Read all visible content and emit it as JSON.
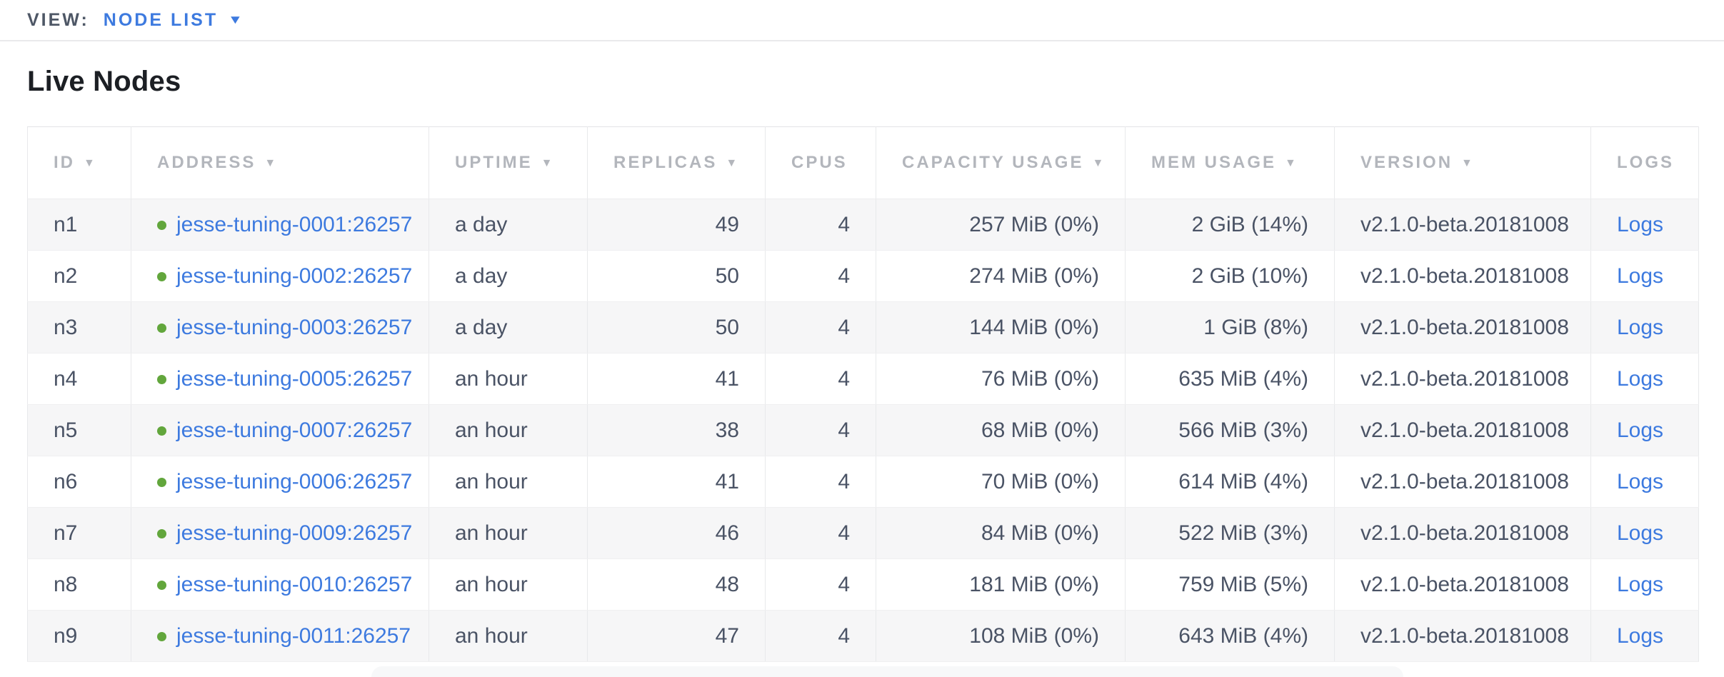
{
  "view_bar": {
    "label": "VIEW:",
    "selected": "NODE LIST",
    "caret": "▼"
  },
  "page": {
    "title": "Live Nodes"
  },
  "colors": {
    "link_blue": "#3d7adf",
    "status_green": "#62a63c",
    "header_gray": "#b3b6bc",
    "row_alt_gray": "#f6f6f7",
    "body_text": "#4a5365"
  },
  "table": {
    "sort_icon": "▼",
    "columns": [
      {
        "key": "id",
        "label": "ID",
        "sortable": true,
        "align": "left"
      },
      {
        "key": "address",
        "label": "ADDRESS",
        "sortable": true,
        "align": "left"
      },
      {
        "key": "uptime",
        "label": "UPTIME",
        "sortable": true,
        "align": "left"
      },
      {
        "key": "replicas",
        "label": "REPLICAS",
        "sortable": true,
        "align": "right"
      },
      {
        "key": "cpus",
        "label": "CPUS",
        "sortable": false,
        "align": "right"
      },
      {
        "key": "capacity",
        "label": "CAPACITY USAGE",
        "sortable": true,
        "align": "right"
      },
      {
        "key": "mem",
        "label": "MEM USAGE",
        "sortable": true,
        "align": "right"
      },
      {
        "key": "version",
        "label": "VERSION",
        "sortable": true,
        "align": "left"
      },
      {
        "key": "logs",
        "label": "LOGS",
        "sortable": false,
        "align": "left"
      }
    ],
    "rows": [
      {
        "id": "n1",
        "address": "jesse-tuning-0001:26257",
        "uptime": "a day",
        "replicas": "49",
        "cpus": "4",
        "capacity": "257 MiB (0%)",
        "mem": "2 GiB (14%)",
        "version": "v2.1.0-beta.20181008",
        "logs": "Logs"
      },
      {
        "id": "n2",
        "address": "jesse-tuning-0002:26257",
        "uptime": "a day",
        "replicas": "50",
        "cpus": "4",
        "capacity": "274 MiB (0%)",
        "mem": "2 GiB (10%)",
        "version": "v2.1.0-beta.20181008",
        "logs": "Logs"
      },
      {
        "id": "n3",
        "address": "jesse-tuning-0003:26257",
        "uptime": "a day",
        "replicas": "50",
        "cpus": "4",
        "capacity": "144 MiB (0%)",
        "mem": "1 GiB (8%)",
        "version": "v2.1.0-beta.20181008",
        "logs": "Logs"
      },
      {
        "id": "n4",
        "address": "jesse-tuning-0005:26257",
        "uptime": "an hour",
        "replicas": "41",
        "cpus": "4",
        "capacity": "76 MiB (0%)",
        "mem": "635 MiB (4%)",
        "version": "v2.1.0-beta.20181008",
        "logs": "Logs"
      },
      {
        "id": "n5",
        "address": "jesse-tuning-0007:26257",
        "uptime": "an hour",
        "replicas": "38",
        "cpus": "4",
        "capacity": "68 MiB (0%)",
        "mem": "566 MiB (3%)",
        "version": "v2.1.0-beta.20181008",
        "logs": "Logs"
      },
      {
        "id": "n6",
        "address": "jesse-tuning-0006:26257",
        "uptime": "an hour",
        "replicas": "41",
        "cpus": "4",
        "capacity": "70 MiB (0%)",
        "mem": "614 MiB (4%)",
        "version": "v2.1.0-beta.20181008",
        "logs": "Logs"
      },
      {
        "id": "n7",
        "address": "jesse-tuning-0009:26257",
        "uptime": "an hour",
        "replicas": "46",
        "cpus": "4",
        "capacity": "84 MiB (0%)",
        "mem": "522 MiB (3%)",
        "version": "v2.1.0-beta.20181008",
        "logs": "Logs"
      },
      {
        "id": "n8",
        "address": "jesse-tuning-0010:26257",
        "uptime": "an hour",
        "replicas": "48",
        "cpus": "4",
        "capacity": "181 MiB (0%)",
        "mem": "759 MiB (5%)",
        "version": "v2.1.0-beta.20181008",
        "logs": "Logs"
      },
      {
        "id": "n9",
        "address": "jesse-tuning-0011:26257",
        "uptime": "an hour",
        "replicas": "47",
        "cpus": "4",
        "capacity": "108 MiB (0%)",
        "mem": "643 MiB (4%)",
        "version": "v2.1.0-beta.20181008",
        "logs": "Logs"
      }
    ]
  }
}
